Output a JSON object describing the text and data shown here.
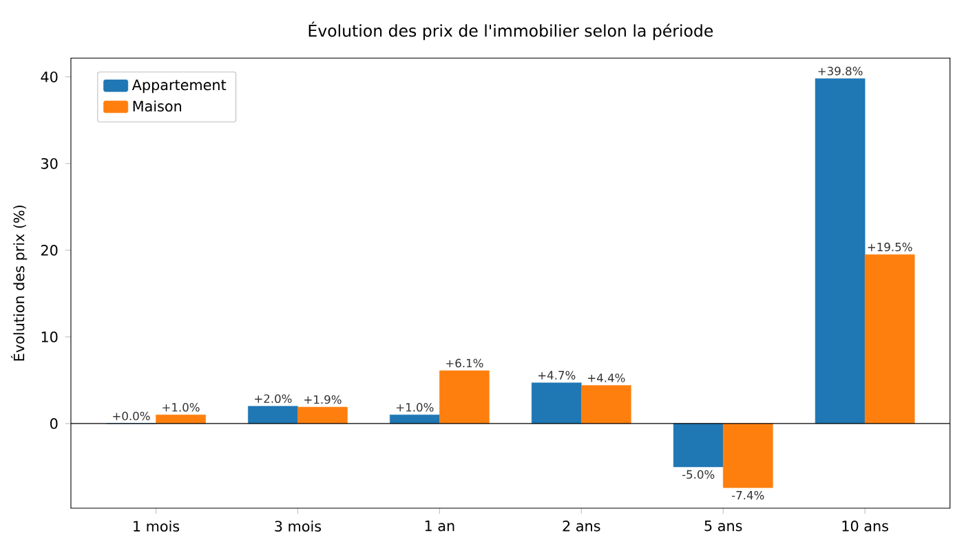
{
  "chart_data": {
    "type": "bar",
    "title": "Évolution des prix de l'immobilier selon la période",
    "ylabel": "Évolution des prix (%)",
    "categories": [
      "1 mois",
      "3 mois",
      "1 an",
      "2 ans",
      "5 ans",
      "10 ans"
    ],
    "series": [
      {
        "name": "Appartement",
        "color": "#1f77b4",
        "values": [
          0.0,
          2.0,
          1.0,
          4.7,
          -5.0,
          39.8
        ],
        "value_labels": [
          "+0.0%",
          "+2.0%",
          "+1.0%",
          "+4.7%",
          "-5.0%",
          "+39.8%"
        ]
      },
      {
        "name": "Maison",
        "color": "#ff7f0e",
        "values": [
          1.0,
          1.9,
          6.1,
          4.4,
          -7.4,
          19.5
        ],
        "value_labels": [
          "+1.0%",
          "+1.9%",
          "+6.1%",
          "+4.4%",
          "-7.4%",
          "+19.5%"
        ]
      }
    ],
    "ylim": [
      -9.76,
      42.16
    ],
    "yticks": [
      0,
      10,
      20,
      30,
      40
    ],
    "grid": false,
    "legend": "top left",
    "ref_lines": [
      {
        "axis": "y",
        "value": 0,
        "color": "#000000"
      }
    ]
  }
}
